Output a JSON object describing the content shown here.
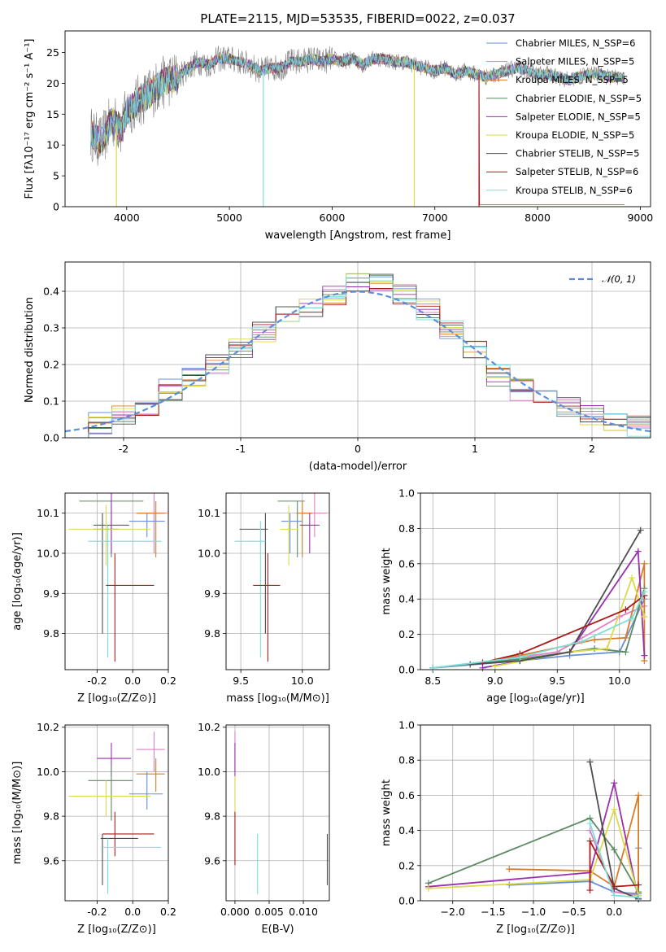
{
  "chart_data": [
    {
      "id": "spectrum",
      "type": "line",
      "title": "PLATE=2115, MJD=53535, FIBERID=0022, z=0.037",
      "xlabel": "wavelength [Angstrom, rest frame]",
      "ylabel": "Flux [fλ10⁻¹⁷ erg cm⁻² s⁻¹ A⁻¹]",
      "xlim": [
        3400,
        9100
      ],
      "ylim": [
        0,
        28.5
      ],
      "xticks": [
        4000,
        5000,
        6000,
        7000,
        8000,
        9000
      ],
      "yticks": [
        0,
        5,
        10,
        15,
        20,
        25
      ],
      "legend_position": "top-right",
      "series": [
        {
          "name": "Chabrier MILES, N_SSP=6",
          "color": "#6b8fd6"
        },
        {
          "name": "Salpeter MILES, N_SSP=5",
          "color": "#e07fc8"
        },
        {
          "name": "Kroupa MILES, N_SSP=5",
          "color": "#d97c2a"
        },
        {
          "name": "Chabrier ELODIE, N_SSP=5",
          "color": "#5c8a63"
        },
        {
          "name": "Salpeter ELODIE, N_SSP=5",
          "color": "#9b2fb0"
        },
        {
          "name": "Kroupa ELODIE, N_SSP=5",
          "color": "#dada4a"
        },
        {
          "name": "Chabrier STELIB, N_SSP=5",
          "color": "#4d4d4d"
        },
        {
          "name": "Salpeter STELIB, N_SSP=6",
          "color": "#a81c1c"
        },
        {
          "name": "Kroupa STELIB, N_SSP=6",
          "color": "#7fdcdc"
        }
      ],
      "observed_color": "#808080",
      "envelope": {
        "x": [
          3650,
          3700,
          3750,
          3800,
          3850,
          3900,
          3950,
          4000,
          4100,
          4200,
          4300,
          4400,
          4500,
          4600,
          4700,
          4800,
          4900,
          5000,
          5100,
          5200,
          5300,
          5400,
          5500,
          5600,
          5700,
          5800,
          5900,
          6000,
          6100,
          6200,
          6300,
          6400,
          6500,
          6600,
          6700,
          6800,
          6900,
          7000,
          7100,
          7200,
          7300,
          7400,
          7500,
          7600,
          7700,
          7800,
          7900,
          8000,
          8100,
          8200,
          8300,
          8400,
          8500,
          8600,
          8700,
          8800
        ],
        "y": [
          12,
          11,
          10.5,
          12,
          14,
          13.5,
          12.5,
          15.5,
          17,
          18,
          19.5,
          20.5,
          21,
          22.5,
          23.5,
          23,
          24,
          24,
          23.5,
          23,
          22,
          22.5,
          22.5,
          23.5,
          23.5,
          24,
          23.5,
          24,
          23.5,
          24,
          23,
          24,
          24,
          23.5,
          23.5,
          23,
          22.5,
          22,
          22.5,
          21.5,
          22,
          21.5,
          21,
          21.5,
          22,
          22.5,
          22,
          21.5,
          21.5,
          21,
          20.5,
          21,
          21.5,
          21.5,
          21,
          21
        ]
      },
      "dips": [
        {
          "name": "Kroupa ELODIE",
          "x": 3900,
          "y": 0
        },
        {
          "name": "Kroupa STELIB",
          "x": 5330,
          "y": 0
        },
        {
          "name": "Kroupa ELODIE",
          "x": 6800,
          "y": 0
        },
        {
          "name": "Salpeter STELIB",
          "x": 7430,
          "y": 0
        }
      ]
    },
    {
      "id": "residuals",
      "type": "step",
      "xlabel": "(data-model)/error",
      "ylabel": "Normed distribution",
      "xlim": [
        -2.5,
        2.5
      ],
      "ylim": [
        0,
        0.48
      ],
      "xticks": [
        -2,
        -1,
        0,
        1,
        2
      ],
      "yticks": [
        0.0,
        0.1,
        0.2,
        0.3,
        0.4
      ],
      "grid": true,
      "legend_position": "top-right",
      "reference": {
        "name": "𝒩(0, 1)",
        "color": "#5b8fd9",
        "mean": 0,
        "sigma": 1
      },
      "series_colors": [
        "#6b8fd6",
        "#e07fc8",
        "#d97c2a",
        "#5c8a63",
        "#9b2fb0",
        "#dada4a",
        "#4d4d4d",
        "#a81c1c",
        "#7fdcdc"
      ],
      "bin_centers": [
        -2.4,
        -2.2,
        -2.0,
        -1.8,
        -1.6,
        -1.4,
        -1.2,
        -1.0,
        -0.8,
        -0.6,
        -0.4,
        -0.2,
        0.0,
        0.2,
        0.4,
        0.6,
        0.8,
        1.0,
        1.2,
        1.4,
        1.6,
        1.8,
        2.0,
        2.2,
        2.4
      ],
      "bin_heights": [
        0.025,
        0.04,
        0.065,
        0.09,
        0.13,
        0.17,
        0.2,
        0.24,
        0.29,
        0.33,
        0.36,
        0.39,
        0.42,
        0.43,
        0.39,
        0.35,
        0.3,
        0.24,
        0.17,
        0.13,
        0.1,
        0.08,
        0.06,
        0.04,
        0.03
      ]
    },
    {
      "id": "age-vs-Z",
      "type": "errorbar",
      "xlabel": "Z [log₁₀(Z/Z⊙)]",
      "ylabel": "age  [log₁₀(age/yr)]",
      "xlim": [
        -0.38,
        0.2
      ],
      "ylim": [
        9.71,
        10.15
      ],
      "xticks": [
        -0.2,
        0.0,
        0.2
      ],
      "yticks": [
        9.8,
        9.9,
        10.0,
        10.1
      ],
      "points": [
        {
          "color": "#5c8a63",
          "x": -0.12,
          "xlo": -0.3,
          "xhi": 0.06,
          "y": 10.13,
          "ylo": 9.99,
          "yhi": 10.13
        },
        {
          "color": "#e07fc8",
          "x": 0.12,
          "xlo": 0.02,
          "xhi": 0.19,
          "y": 10.1,
          "ylo": 10.0,
          "yhi": 10.15
        },
        {
          "color": "#d97c2a",
          "x": 0.13,
          "xlo": 0.02,
          "xhi": 0.18,
          "y": 10.1,
          "ylo": 9.99,
          "yhi": 10.13
        },
        {
          "color": "#6b8fd6",
          "x": 0.08,
          "xlo": -0.02,
          "xhi": 0.18,
          "y": 10.08,
          "ylo": 10.04,
          "yhi": 10.1
        },
        {
          "color": "#9b2fb0",
          "x": -0.12,
          "xlo": -0.22,
          "xhi": -0.02,
          "y": 10.07,
          "ylo": 10.0,
          "yhi": 10.15
        },
        {
          "color": "#4d4d4d",
          "x": -0.17,
          "xlo": -0.22,
          "xhi": -0.08,
          "y": 10.06,
          "ylo": 9.8,
          "yhi": 10.1
        },
        {
          "color": "#dada4a",
          "x": -0.15,
          "xlo": -0.36,
          "xhi": 0.1,
          "y": 10.06,
          "ylo": 9.97,
          "yhi": 10.12
        },
        {
          "color": "#7fdcdc",
          "x": -0.14,
          "xlo": -0.25,
          "xhi": 0.16,
          "y": 10.03,
          "ylo": 9.74,
          "yhi": 10.07
        },
        {
          "color": "#a81c1c",
          "x": -0.1,
          "xlo": -0.15,
          "xhi": 0.12,
          "y": 9.92,
          "ylo": 9.73,
          "yhi": 10.0
        }
      ]
    },
    {
      "id": "age-vs-mass",
      "type": "errorbar",
      "xlabel": "mass [log₁₀(M/M⊙)]",
      "ylabel": "",
      "xlim": [
        9.38,
        10.22
      ],
      "ylim": [
        9.71,
        10.15
      ],
      "xticks": [
        9.5,
        10.0
      ],
      "yticks": [
        9.8,
        9.9,
        10.0,
        10.1
      ],
      "points": [
        {
          "color": "#5c8a63",
          "x": 9.96,
          "xlo": 9.8,
          "xhi": 10.02,
          "y": 10.13,
          "ylo": 9.99,
          "yhi": 10.13
        },
        {
          "color": "#e07fc8",
          "x": 10.1,
          "xlo": 10.0,
          "xhi": 10.2,
          "y": 10.1,
          "ylo": 10.04,
          "yhi": 10.15
        },
        {
          "color": "#d97c2a",
          "x": 10.0,
          "xlo": 9.95,
          "xhi": 10.08,
          "y": 10.1,
          "ylo": 9.99,
          "yhi": 10.13
        },
        {
          "color": "#6b8fd6",
          "x": 9.9,
          "xlo": 9.83,
          "xhi": 10.0,
          "y": 10.08,
          "ylo": 10.0,
          "yhi": 10.1
        },
        {
          "color": "#9b2fb0",
          "x": 10.06,
          "xlo": 9.98,
          "xhi": 10.14,
          "y": 10.07,
          "ylo": 10.0,
          "yhi": 10.1
        },
        {
          "color": "#4d4d4d",
          "x": 9.7,
          "xlo": 9.49,
          "xhi": 9.72,
          "y": 10.06,
          "ylo": 9.8,
          "yhi": 10.1
        },
        {
          "color": "#dada4a",
          "x": 9.89,
          "xlo": 9.82,
          "xhi": 9.97,
          "y": 10.06,
          "ylo": 9.97,
          "yhi": 10.12
        },
        {
          "color": "#7fdcdc",
          "x": 9.66,
          "xlo": 9.45,
          "xhi": 9.7,
          "y": 10.03,
          "ylo": 9.74,
          "yhi": 10.08
        },
        {
          "color": "#a81c1c",
          "x": 9.72,
          "xlo": 9.6,
          "xhi": 9.82,
          "y": 9.92,
          "ylo": 9.73,
          "yhi": 10.0
        }
      ]
    },
    {
      "id": "weight-vs-age",
      "type": "line",
      "xlabel": "age  [log₁₀(age/yr)]",
      "ylabel": "mass weight",
      "xlim": [
        8.4,
        10.25
      ],
      "ylim": [
        0,
        1
      ],
      "xticks": [
        8.5,
        9.0,
        9.5,
        10.0
      ],
      "yticks": [
        0.0,
        0.2,
        0.4,
        0.6,
        0.8,
        1.0
      ],
      "series": [
        {
          "color": "#6b8fd6",
          "x": [
            8.5,
            9.2,
            9.6,
            10.0,
            10.2
          ],
          "y": [
            0.01,
            0.05,
            0.08,
            0.1,
            0.4
          ]
        },
        {
          "color": "#e07fc8",
          "x": [
            9.1,
            9.5,
            10.0,
            10.2
          ],
          "y": [
            0.06,
            0.1,
            0.3,
            0.36
          ]
        },
        {
          "color": "#d97c2a",
          "x": [
            9.0,
            9.8,
            10.05,
            10.2,
            10.2
          ],
          "y": [
            0.05,
            0.17,
            0.18,
            0.6,
            0.05
          ]
        },
        {
          "color": "#5c8a63",
          "x": [
            8.5,
            9.2,
            9.8,
            10.05,
            10.2
          ],
          "y": [
            0.01,
            0.06,
            0.12,
            0.1,
            0.46
          ]
        },
        {
          "color": "#9b2fb0",
          "x": [
            8.9,
            9.6,
            10.15,
            10.2
          ],
          "y": [
            0.01,
            0.1,
            0.67,
            0.08
          ]
        },
        {
          "color": "#dada4a",
          "x": [
            9.0,
            9.6,
            9.9,
            10.1,
            10.2
          ],
          "y": [
            0.02,
            0.1,
            0.12,
            0.52,
            0.3
          ]
        },
        {
          "color": "#4d4d4d",
          "x": [
            8.8,
            9.2,
            9.6,
            10.17
          ],
          "y": [
            0.03,
            0.05,
            0.1,
            0.79
          ]
        },
        {
          "color": "#a81c1c",
          "x": [
            8.9,
            9.2,
            10.05,
            10.2
          ],
          "y": [
            0.04,
            0.09,
            0.34,
            0.42
          ]
        },
        {
          "color": "#7fdcdc",
          "x": [
            8.5,
            9.2,
            9.7,
            10.1,
            10.2
          ],
          "y": [
            0.01,
            0.07,
            0.16,
            0.29,
            0.44
          ]
        }
      ]
    },
    {
      "id": "mass-vs-Z",
      "type": "errorbar",
      "xlabel": "Z [log₁₀(Z/Z⊙)]",
      "ylabel": "mass [log₁₀(M/M⊙)]",
      "xlim": [
        -0.38,
        0.2
      ],
      "ylim": [
        9.42,
        10.21
      ],
      "xticks": [
        -0.2,
        0.0,
        0.2
      ],
      "yticks": [
        9.6,
        9.8,
        10.0,
        10.2
      ],
      "points": [
        {
          "color": "#e07fc8",
          "x": 0.12,
          "xlo": 0.02,
          "xhi": 0.18,
          "y": 10.1,
          "ylo": 10.0,
          "yhi": 10.18
        },
        {
          "color": "#9b2fb0",
          "x": -0.12,
          "xlo": -0.2,
          "xhi": -0.01,
          "y": 10.06,
          "ylo": 9.98,
          "yhi": 10.13
        },
        {
          "color": "#d97c2a",
          "x": 0.13,
          "xlo": 0.02,
          "xhi": 0.18,
          "y": 9.99,
          "ylo": 9.91,
          "yhi": 10.06
        },
        {
          "color": "#5c8a63",
          "x": -0.12,
          "xlo": -0.25,
          "xhi": 0.0,
          "y": 9.96,
          "ylo": 9.78,
          "yhi": 10.03
        },
        {
          "color": "#6b8fd6",
          "x": 0.08,
          "xlo": -0.02,
          "xhi": 0.17,
          "y": 9.9,
          "ylo": 9.83,
          "yhi": 10.0
        },
        {
          "color": "#dada4a",
          "x": -0.15,
          "xlo": -0.36,
          "xhi": 0.1,
          "y": 9.89,
          "ylo": 9.8,
          "yhi": 9.96
        },
        {
          "color": "#a81c1c",
          "x": -0.1,
          "xlo": -0.17,
          "xhi": 0.12,
          "y": 9.72,
          "ylo": 9.62,
          "yhi": 9.82
        },
        {
          "color": "#4d4d4d",
          "x": -0.17,
          "xlo": -0.18,
          "xhi": 0.03,
          "y": 9.7,
          "ylo": 9.49,
          "yhi": 9.72
        },
        {
          "color": "#7fdcdc",
          "x": -0.14,
          "xlo": -0.17,
          "xhi": 0.16,
          "y": 9.66,
          "ylo": 9.45,
          "yhi": 9.7
        }
      ]
    },
    {
      "id": "mass-vs-EBV",
      "type": "errorbar",
      "xlabel": "E(B-V)",
      "ylabel": "",
      "xlim": [
        -0.0013,
        0.0138
      ],
      "ylim": [
        9.42,
        10.21
      ],
      "xticks": [
        0.0,
        0.005,
        0.01
      ],
      "xticklabels": [
        "0.000",
        "0.005",
        "0.010"
      ],
      "yticks": [
        9.6,
        9.8,
        10.0,
        10.2
      ],
      "points": [
        {
          "color": "#e07fc8",
          "x": 0.0,
          "xlo": 0.0,
          "xhi": 0.0,
          "y": 10.1,
          "ylo": 10.0,
          "yhi": 10.18
        },
        {
          "color": "#9b2fb0",
          "x": 0.0,
          "xlo": 0.0,
          "xhi": 0.0,
          "y": 10.06,
          "ylo": 9.98,
          "yhi": 10.13
        },
        {
          "color": "#dada4a",
          "x": 0.0,
          "xlo": 0.0,
          "xhi": 0.0,
          "y": 9.89,
          "ylo": 9.8,
          "yhi": 9.98
        },
        {
          "color": "#a81c1c",
          "x": 0.0,
          "xlo": 0.0,
          "xhi": 0.0,
          "y": 9.72,
          "ylo": 9.58,
          "yhi": 9.82
        },
        {
          "color": "#7fdcdc",
          "x": 0.0033,
          "xlo": 0.0033,
          "xhi": 0.0033,
          "y": 9.66,
          "ylo": 9.45,
          "yhi": 9.72
        },
        {
          "color": "#4d4d4d",
          "x": 0.0135,
          "xlo": 0.0135,
          "xhi": 0.0135,
          "y": 9.6,
          "ylo": 9.49,
          "yhi": 9.72
        }
      ]
    },
    {
      "id": "weight-vs-Z",
      "type": "line",
      "xlabel": "Z [log₁₀(Z/Z⊙)]",
      "ylabel": "mass weight",
      "xlim": [
        -2.4,
        0.45
      ],
      "ylim": [
        0,
        1
      ],
      "xticks": [
        -2.0,
        -1.5,
        -1.0,
        -0.5,
        0.0
      ],
      "xticklabels": [
        "−2.0",
        "−1.5",
        "−1.0",
        "−0.5",
        "0.0"
      ],
      "yticks": [
        0.0,
        0.2,
        0.4,
        0.6,
        0.8,
        1.0
      ],
      "series": [
        {
          "color": "#6b8fd6",
          "x": [
            -1.3,
            -0.3,
            0.0,
            0.3,
            0.3
          ],
          "y": [
            0.09,
            0.11,
            0.05,
            0.04,
            0.3
          ]
        },
        {
          "color": "#e07fc8",
          "x": [
            -0.3,
            0.0,
            0.3
          ],
          "y": [
            0.4,
            0.05,
            0.03
          ]
        },
        {
          "color": "#d97c2a",
          "x": [
            -1.3,
            -0.3,
            0.0,
            0.3,
            0.3
          ],
          "y": [
            0.18,
            0.17,
            0.08,
            0.6,
            0.05
          ]
        },
        {
          "color": "#5c8a63",
          "x": [
            -2.3,
            -0.3,
            0.0,
            0.3
          ],
          "y": [
            0.1,
            0.47,
            0.29,
            0.05
          ]
        },
        {
          "color": "#9b2fb0",
          "x": [
            -2.3,
            -0.3,
            0.0,
            0.3
          ],
          "y": [
            0.08,
            0.16,
            0.67,
            0.01
          ]
        },
        {
          "color": "#dada4a",
          "x": [
            -2.3,
            -0.3,
            0.0,
            0.3
          ],
          "y": [
            0.07,
            0.12,
            0.52,
            0.03
          ]
        },
        {
          "color": "#4d4d4d",
          "x": [
            -0.3,
            0.0,
            0.3
          ],
          "y": [
            0.79,
            0.07,
            0.01
          ]
        },
        {
          "color": "#a81c1c",
          "x": [
            -0.3,
            -0.3,
            0.0,
            0.3
          ],
          "y": [
            0.06,
            0.34,
            0.08,
            0.09
          ]
        },
        {
          "color": "#7fdcdc",
          "x": [
            -0.3,
            0.0,
            0.3
          ],
          "y": [
            0.44,
            0.03,
            0.02
          ]
        }
      ]
    }
  ]
}
